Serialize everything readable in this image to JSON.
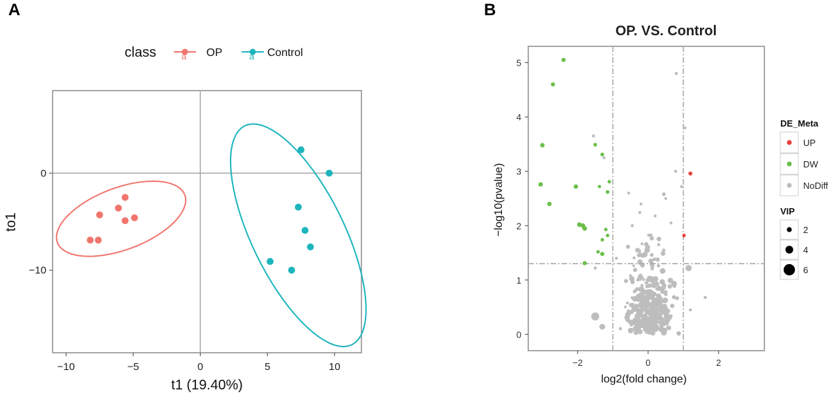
{
  "chart_data": [
    {
      "panel_label": "A",
      "type": "scatter",
      "title": "",
      "xlabel": "t1 (19.40%)",
      "ylabel": "to1",
      "xlim": [
        -11,
        12
      ],
      "ylim": [
        -18.5,
        8.5
      ],
      "xticks": [
        -10,
        -5,
        0,
        5,
        10
      ],
      "xtick_labels": [
        "−10",
        "−5",
        "0",
        "5",
        "10"
      ],
      "yticks": [
        0,
        -10
      ],
      "ytick_labels": [
        "0",
        "−10"
      ],
      "grid": false,
      "reference_lines": {
        "x": 0,
        "y": 0
      },
      "legend": {
        "title": "class",
        "position": "top",
        "glyph": "a"
      },
      "series": [
        {
          "name": "OP",
          "color": "#F0766D",
          "x": [
            -8.2,
            -7.6,
            -7.5,
            -6.1,
            -5.6,
            -5.6,
            -4.9
          ],
          "y": [
            -6.9,
            -6.9,
            -4.3,
            -3.6,
            -4.9,
            -2.5,
            -4.6
          ],
          "ellipse": {
            "cx": -5.9,
            "cy": -4.7,
            "rx": 5.4,
            "ry": 3.0,
            "angle_deg": 33
          }
        },
        {
          "name": "Control",
          "color": "#1DB5BD",
          "x": [
            5.2,
            6.8,
            7.3,
            7.5,
            7.8,
            8.2,
            9.6
          ],
          "y": [
            -9.1,
            -10.0,
            -3.5,
            2.4,
            -5.9,
            -7.6,
            0.0
          ],
          "ellipse": {
            "cx": 7.3,
            "cy": -6.4,
            "rx": 3.6,
            "ry": 12.0,
            "angle_deg": 18
          }
        }
      ]
    },
    {
      "panel_label": "B",
      "type": "scatter",
      "title": "OP. VS. Control",
      "xlabel": "log2(fold change)",
      "ylabel": "−log10(pvalue)",
      "xlim": [
        -3.4,
        3.3
      ],
      "ylim": [
        -0.3,
        5.3
      ],
      "xticks": [
        -2,
        0,
        2
      ],
      "xtick_labels": [
        "−2",
        "0",
        "2"
      ],
      "yticks": [
        0,
        1,
        2,
        3,
        4,
        5
      ],
      "ytick_labels": [
        "0",
        "1",
        "2",
        "3",
        "4",
        "5"
      ],
      "grid": false,
      "threshold_lines": {
        "x": [
          -1,
          1
        ],
        "y": [
          1.3
        ]
      },
      "legend": {
        "color_title": "DE_Meta",
        "color_entries": [
          {
            "label": "UP",
            "color": "#E8403C"
          },
          {
            "label": "DW",
            "color": "#6CBF4B"
          },
          {
            "label": "NoDiff",
            "color": "#BDBDBD"
          }
        ],
        "size_title": "VIP",
        "size_entries": [
          {
            "label": "2",
            "vip": 2
          },
          {
            "label": "4",
            "vip": 4
          },
          {
            "label": "6",
            "vip": 6
          }
        ],
        "position": "right"
      },
      "series": [
        {
          "name": "UP",
          "color": "#E8403C",
          "points": [
            [
              1.2,
              2.96,
              1.8
            ],
            [
              1.02,
              1.82,
              1.6
            ]
          ]
        },
        {
          "name": "DW",
          "color": "#6CBF4B",
          "points": [
            [
              -2.4,
              5.05,
              1.9
            ],
            [
              -2.7,
              4.6,
              1.9
            ],
            [
              -3.0,
              3.48,
              2.0
            ],
            [
              -3.05,
              2.76,
              2.0
            ],
            [
              -2.05,
              2.72,
              2.0
            ],
            [
              -2.8,
              2.4,
              2.0
            ],
            [
              -1.5,
              3.49,
              1.7
            ],
            [
              -1.3,
              3.31,
              1.7
            ],
            [
              -1.1,
              2.81,
              1.6
            ],
            [
              -1.15,
              2.62,
              1.7
            ],
            [
              -1.38,
              2.72,
              1.5
            ],
            [
              -1.95,
              2.02,
              2.1
            ],
            [
              -1.85,
              2.0,
              2.1
            ],
            [
              -1.8,
              1.95,
              2.1
            ],
            [
              -1.2,
              1.93,
              1.6
            ],
            [
              -1.15,
              1.82,
              1.6
            ],
            [
              -1.3,
              1.74,
              1.6
            ],
            [
              -1.42,
              1.52,
              1.6
            ],
            [
              -1.3,
              1.48,
              1.9
            ],
            [
              -1.8,
              1.31,
              1.9
            ]
          ]
        },
        {
          "name": "NoDiff",
          "color": "#BDBDBD",
          "points": [
            [
              0.8,
              4.8,
              1.4
            ],
            [
              1.05,
              3.8,
              1.3
            ],
            [
              -1.55,
              3.65,
              1.4
            ],
            [
              -1.25,
              3.25,
              1.4
            ],
            [
              0.78,
              3.0,
              1.4
            ],
            [
              0.95,
              2.72,
              1.4
            ],
            [
              0.5,
              2.5,
              1.3
            ],
            [
              -0.55,
              2.6,
              1.3
            ],
            [
              -0.2,
              2.4,
              1.3
            ],
            [
              0.2,
              2.18,
              1.3
            ],
            [
              0.65,
              2.05,
              1.3
            ],
            [
              -0.45,
              2.0,
              1.4
            ],
            [
              1.15,
              1.22,
              2.8
            ],
            [
              -1.5,
              0.33,
              3.6
            ],
            [
              -1.3,
              0.14,
              2.6
            ],
            [
              1.62,
              0.68,
              1.4
            ],
            [
              1.2,
              0.45,
              1.4
            ],
            [
              -1.5,
              1.22,
              1.4
            ],
            [
              -0.9,
              1.4,
              1.4
            ],
            [
              0.3,
              1.65,
              1.4
            ]
          ]
        }
      ]
    }
  ]
}
